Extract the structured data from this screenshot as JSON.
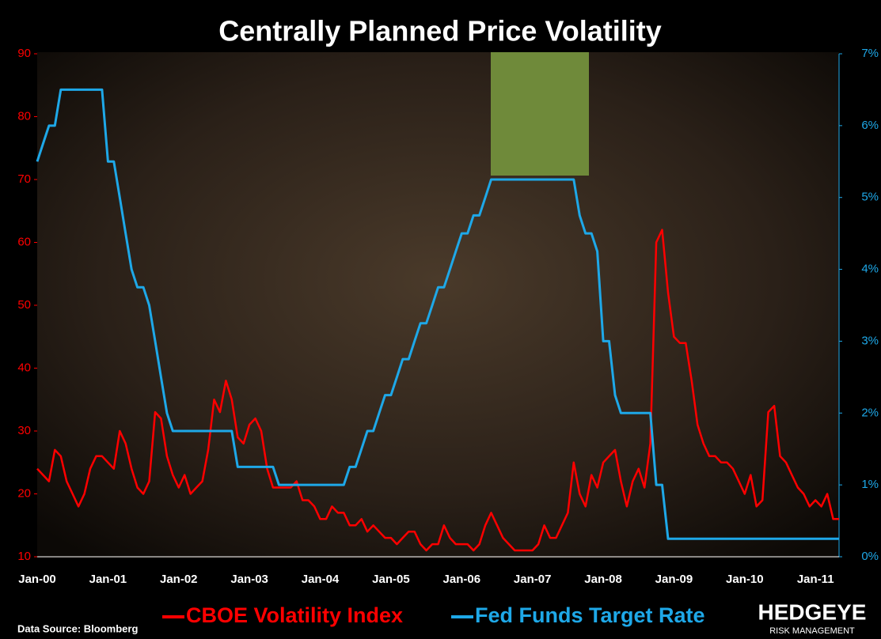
{
  "chart_data": {
    "type": "line",
    "title": "Centrally Planned Price Volatility",
    "source": "Data Source: Bloomberg",
    "brand": "HEDGEYE",
    "brand_sub": "RISK MANAGEMENT",
    "categories": [
      "Jan-00",
      null,
      null,
      null,
      null,
      null,
      null,
      null,
      null,
      null,
      null,
      null,
      "Jan-01",
      null,
      null,
      null,
      null,
      null,
      null,
      null,
      null,
      null,
      null,
      null,
      "Jan-02",
      null,
      null,
      null,
      null,
      null,
      null,
      null,
      null,
      null,
      null,
      null,
      "Jan-03",
      null,
      null,
      null,
      null,
      null,
      null,
      null,
      null,
      null,
      null,
      null,
      "Jan-04",
      null,
      null,
      null,
      null,
      null,
      null,
      null,
      null,
      null,
      null,
      null,
      "Jan-05",
      null,
      null,
      null,
      null,
      null,
      null,
      null,
      null,
      null,
      null,
      null,
      "Jan-06",
      null,
      null,
      null,
      null,
      null,
      null,
      null,
      null,
      null,
      null,
      null,
      "Jan-07",
      null,
      null,
      null,
      null,
      null,
      null,
      null,
      null,
      null,
      null,
      null,
      "Jan-08",
      null,
      null,
      null,
      null,
      null,
      null,
      null,
      null,
      null,
      null,
      null,
      "Jan-09",
      null,
      null,
      null,
      null,
      null,
      null,
      null,
      null,
      null,
      null,
      null,
      "Jan-10",
      null,
      null,
      null,
      null,
      null,
      null,
      null,
      null,
      null,
      null,
      null,
      "Jan-11",
      null,
      null,
      null,
      null
    ],
    "series": [
      {
        "name": "CBOE Volatility Index",
        "color": "#ff0000",
        "axis": "y",
        "values": [
          24,
          23,
          22,
          27,
          26,
          22,
          20,
          18,
          20,
          24,
          26,
          26,
          25,
          24,
          30,
          28,
          24,
          21,
          20,
          22,
          33,
          32,
          26,
          23,
          21,
          23,
          20,
          21,
          22,
          27,
          35,
          33,
          38,
          35,
          29,
          28,
          31,
          32,
          30,
          24,
          21,
          21,
          21,
          21,
          22,
          19,
          19,
          18,
          16,
          16,
          18,
          17,
          17,
          15,
          15,
          16,
          14,
          15,
          14,
          13,
          13,
          12,
          13,
          14,
          14,
          12,
          11,
          12,
          12,
          15,
          13,
          12,
          12,
          12,
          11,
          12,
          15,
          17,
          15,
          13,
          12,
          11,
          11,
          11,
          11,
          12,
          15,
          13,
          13,
          15,
          17,
          25,
          20,
          18,
          23,
          21,
          25,
          26,
          27,
          22,
          18,
          22,
          24,
          21,
          28,
          60,
          62,
          52,
          45,
          44,
          44,
          38,
          31,
          28,
          26,
          26,
          25,
          25,
          24,
          22,
          20,
          23,
          18,
          19,
          33,
          34,
          26,
          25,
          23,
          21,
          20,
          18,
          19,
          18,
          20,
          16,
          16
        ]
      },
      {
        "name": "Fed Funds Target Rate",
        "color": "#1ea8e8",
        "axis": "y2",
        "values": [
          5.5,
          5.75,
          6,
          6,
          6.5,
          6.5,
          6.5,
          6.5,
          6.5,
          6.5,
          6.5,
          6.5,
          5.5,
          5.5,
          5,
          4.5,
          4,
          3.75,
          3.75,
          3.5,
          3,
          2.5,
          2,
          1.75,
          1.75,
          1.75,
          1.75,
          1.75,
          1.75,
          1.75,
          1.75,
          1.75,
          1.75,
          1.75,
          1.25,
          1.25,
          1.25,
          1.25,
          1.25,
          1.25,
          1.25,
          1,
          1,
          1,
          1,
          1,
          1,
          1,
          1,
          1,
          1,
          1,
          1,
          1.25,
          1.25,
          1.5,
          1.75,
          1.75,
          2,
          2.25,
          2.25,
          2.5,
          2.75,
          2.75,
          3,
          3.25,
          3.25,
          3.5,
          3.75,
          3.75,
          4,
          4.25,
          4.5,
          4.5,
          4.75,
          4.75,
          5,
          5.25,
          5.25,
          5.25,
          5.25,
          5.25,
          5.25,
          5.25,
          5.25,
          5.25,
          5.25,
          5.25,
          5.25,
          5.25,
          5.25,
          5.25,
          4.75,
          4.5,
          4.5,
          4.25,
          3,
          3,
          2.25,
          2,
          2,
          2,
          2,
          2,
          2,
          1,
          1,
          0.25,
          0.25,
          0.25,
          0.25,
          0.25,
          0.25,
          0.25,
          0.25,
          0.25,
          0.25,
          0.25,
          0.25,
          0.25,
          0.25,
          0.25,
          0.25,
          0.25,
          0.25,
          0.25,
          0.25,
          0.25,
          0.25,
          0.25,
          0.25,
          0.25,
          0.25,
          0.25,
          0.25,
          0.25,
          0.25
        ]
      }
    ],
    "ylim": [
      10,
      90
    ],
    "yticks": [
      10,
      20,
      30,
      40,
      50,
      60,
      70,
      80,
      90
    ],
    "y2lim": [
      0,
      7
    ],
    "y2ticks": [
      {
        "value": 0,
        "label": "0%"
      },
      {
        "value": 1,
        "label": "1%"
      },
      {
        "value": 2,
        "label": "2%"
      },
      {
        "value": 3,
        "label": "3%"
      },
      {
        "value": 4,
        "label": "4%"
      },
      {
        "value": 5,
        "label": "5%"
      },
      {
        "value": 6,
        "label": "6%"
      },
      {
        "value": 7,
        "label": "7%"
      }
    ],
    "grid": false,
    "legend": "bottom"
  }
}
